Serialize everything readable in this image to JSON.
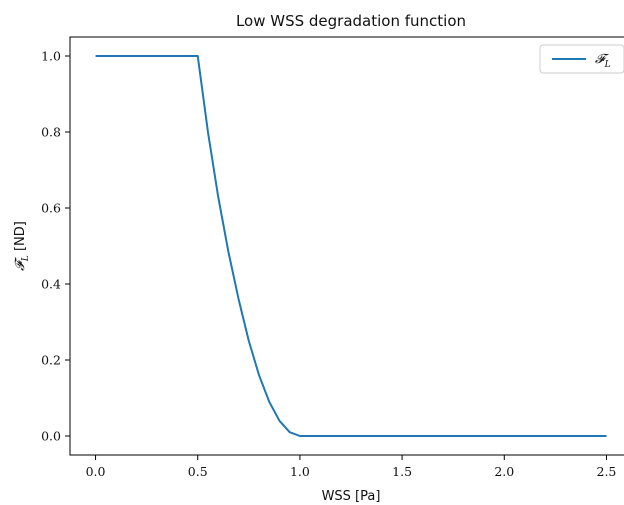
{
  "chart_data": {
    "type": "line",
    "title": "Low WSS degradation function",
    "xlabel": "WSS [Pa]",
    "ylabel": "𝓕_L [ND]",
    "xlim": [
      -0.125,
      2.625
    ],
    "ylim": [
      -0.05,
      1.05
    ],
    "xticks": [
      0.0,
      0.5,
      1.0,
      1.5,
      2.0,
      2.5
    ],
    "xtick_labels": [
      "0.0",
      "0.5",
      "1.0",
      "1.5",
      "2.0",
      "2.5"
    ],
    "yticks": [
      0.0,
      0.2,
      0.4,
      0.6,
      0.8,
      1.0
    ],
    "ytick_labels": [
      "0.0",
      "0.2",
      "0.4",
      "0.6",
      "0.8",
      "1.0"
    ],
    "grid": false,
    "legend_position": "upper right",
    "series": [
      {
        "name": "𝓕_L",
        "color": "#1f77b4",
        "x": [
          0.0,
          0.5,
          0.55,
          0.6,
          0.65,
          0.7,
          0.75,
          0.8,
          0.85,
          0.9,
          0.95,
          1.0,
          2.5
        ],
        "y": [
          1.0,
          1.0,
          0.8,
          0.63,
          0.485,
          0.36,
          0.25,
          0.16,
          0.09,
          0.04,
          0.01,
          0.0,
          0.0
        ]
      }
    ]
  }
}
